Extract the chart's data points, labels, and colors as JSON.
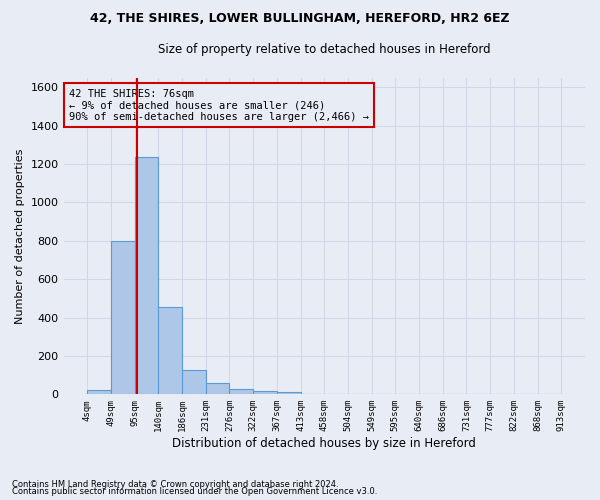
{
  "title": "42, THE SHIRES, LOWER BULLINGHAM, HEREFORD, HR2 6EZ",
  "subtitle": "Size of property relative to detached houses in Hereford",
  "xlabel": "Distribution of detached houses by size in Hereford",
  "ylabel": "Number of detached properties",
  "footnote1": "Contains HM Land Registry data © Crown copyright and database right 2024.",
  "footnote2": "Contains public sector information licensed under the Open Government Licence v3.0.",
  "bar_values": [
    25,
    800,
    1235,
    455,
    125,
    58,
    27,
    18,
    13,
    0,
    0,
    0,
    0,
    0,
    0,
    0,
    0,
    0,
    0,
    0
  ],
  "bin_labels": [
    "4sqm",
    "49sqm",
    "95sqm",
    "140sqm",
    "186sqm",
    "231sqm",
    "276sqm",
    "322sqm",
    "367sqm",
    "413sqm",
    "458sqm",
    "504sqm",
    "549sqm",
    "595sqm",
    "640sqm",
    "686sqm",
    "731sqm",
    "777sqm",
    "822sqm",
    "868sqm",
    "913sqm"
  ],
  "bar_color": "#aec6e8",
  "bar_edge_color": "#5b9bd5",
  "grid_color": "#d0d8e8",
  "background_color": "#e8edf5",
  "vline_x": 1.587,
  "vline_color": "#cc0000",
  "annotation_line1": "42 THE SHIRES: 76sqm",
  "annotation_line2": "← 9% of detached houses are smaller (246)",
  "annotation_line3": "90% of semi-detached houses are larger (2,466) →",
  "annotation_box_color": "#cc0000",
  "ylim": [
    0,
    1650
  ],
  "yticks": [
    0,
    200,
    400,
    600,
    800,
    1000,
    1200,
    1400,
    1600
  ]
}
